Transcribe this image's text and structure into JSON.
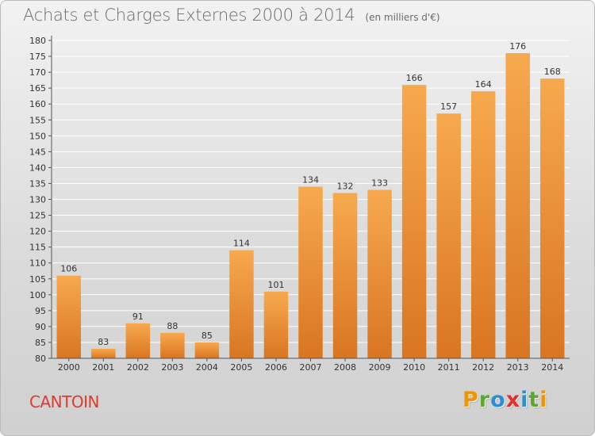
{
  "header": {
    "title": "Achats et Charges Externes 2000 à 2014",
    "unit": "(en milliers d'€)"
  },
  "footer": {
    "commune": "CANTOIN",
    "logo_letters": [
      "P",
      "r",
      "o",
      "x",
      "i",
      "t",
      "i"
    ],
    "logo_colors": [
      "#f29400",
      "#5aa832",
      "#2d8fcf",
      "#e2302c",
      "#2d8fcf",
      "#5aa832",
      "#f29400"
    ]
  },
  "colors": {
    "bar_light": "#f7a94e",
    "bar_dark": "#d97521",
    "gridline": "#ffffff",
    "axis": "#555555"
  },
  "chart_data": {
    "type": "bar",
    "title": "Achats et Charges Externes 2000 à 2014",
    "xlabel": "",
    "ylabel": "",
    "ylim": [
      80,
      180
    ],
    "ytick_step": 5,
    "grid": true,
    "categories": [
      "2000",
      "2001",
      "2002",
      "2003",
      "2004",
      "2005",
      "2006",
      "2007",
      "2008",
      "2009",
      "2010",
      "2011",
      "2012",
      "2013",
      "2014"
    ],
    "values": [
      106,
      83,
      91,
      88,
      85,
      114,
      101,
      134,
      132,
      133,
      166,
      157,
      164,
      176,
      168
    ]
  }
}
